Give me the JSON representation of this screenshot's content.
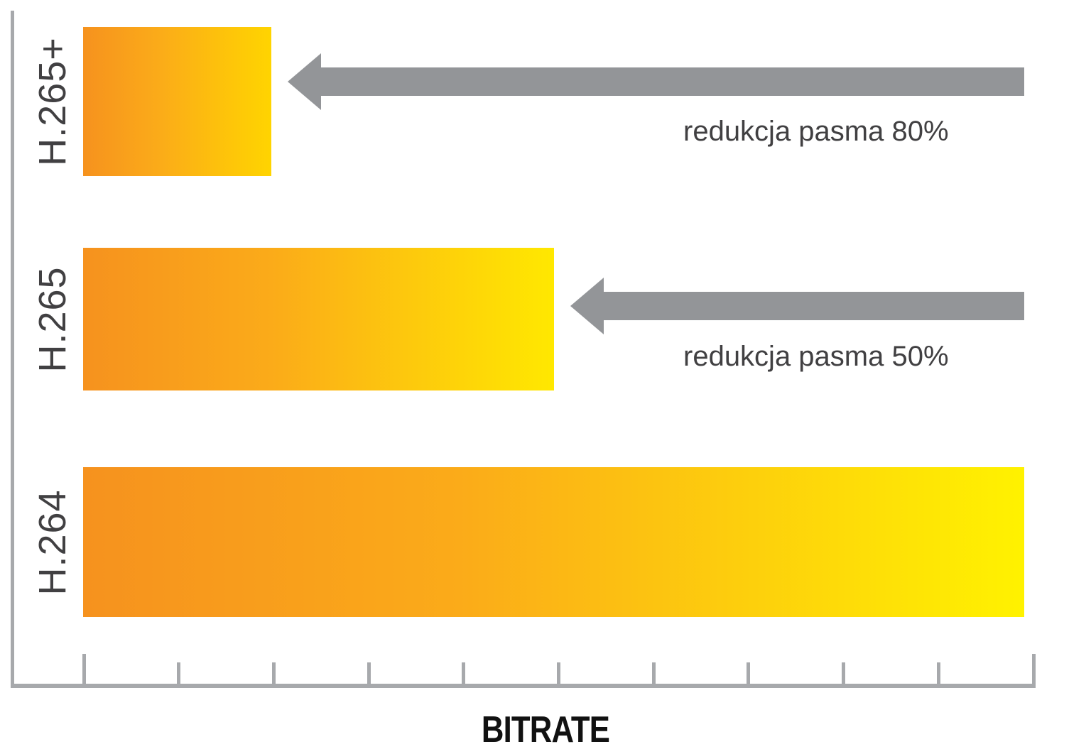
{
  "chart_data": {
    "type": "bar",
    "orientation": "horizontal",
    "title": "",
    "xlabel": "BITRATE",
    "categories": [
      "H.265+",
      "H.265",
      "H.264"
    ],
    "values": [
      20,
      50,
      100
    ],
    "value_unit": "relative bitrate, percent of H.264",
    "xlim": [
      0,
      100
    ],
    "grid": false,
    "legend": "none",
    "tick_count": 11,
    "annotations": [
      {
        "text": "redukcja pasma 80%",
        "refers_to": "H.265+"
      },
      {
        "text": "redukcja pasma 50%",
        "refers_to": "H.265"
      }
    ],
    "colors": {
      "bar_gradient_start": "#F6921E",
      "bar_gradient_mid": "#FBAB19",
      "bar_gradient_ends": [
        "#FFD400",
        "#FFE800",
        "#FFF200"
      ],
      "arrow": "#939598",
      "axis": "#A7A9AC",
      "annotation_text": "#414042",
      "axis_title_text": "#111111",
      "background": "#FFFFFF"
    }
  }
}
